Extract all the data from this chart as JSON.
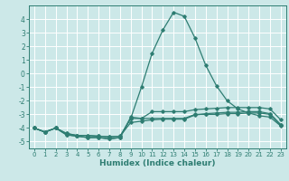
{
  "xlabel": "Humidex (Indice chaleur)",
  "x": [
    0,
    1,
    2,
    3,
    4,
    5,
    6,
    7,
    8,
    9,
    10,
    11,
    12,
    13,
    14,
    15,
    16,
    17,
    18,
    19,
    20,
    21,
    22,
    23
  ],
  "line1": [
    -4.0,
    -4.3,
    -4.0,
    -4.5,
    -4.6,
    -4.7,
    -4.7,
    -4.8,
    -4.7,
    -3.3,
    -1.0,
    1.5,
    3.2,
    4.5,
    4.2,
    2.6,
    0.6,
    -0.9,
    -2.0,
    -2.6,
    -2.9,
    -3.1,
    -3.2,
    -3.85
  ],
  "line2": [
    -4.0,
    -4.3,
    -4.0,
    -4.5,
    -4.6,
    -4.7,
    -4.7,
    -4.8,
    -4.7,
    -3.2,
    -3.3,
    -3.3,
    -3.3,
    -3.3,
    -3.3,
    -3.0,
    -3.0,
    -3.0,
    -2.95,
    -2.95,
    -2.9,
    -2.9,
    -3.0,
    -3.8
  ],
  "line3": [
    -4.0,
    -4.3,
    -4.0,
    -4.4,
    -4.55,
    -4.55,
    -4.6,
    -4.65,
    -4.6,
    -3.6,
    -3.5,
    -3.4,
    -3.35,
    -3.35,
    -3.35,
    -3.05,
    -2.95,
    -2.9,
    -2.85,
    -2.85,
    -2.8,
    -2.8,
    -2.95,
    -3.75
  ],
  "line4": [
    -4.0,
    -4.3,
    -4.0,
    -4.4,
    -4.55,
    -4.55,
    -4.6,
    -4.65,
    -4.6,
    -3.3,
    -3.3,
    -2.8,
    -2.8,
    -2.8,
    -2.8,
    -2.65,
    -2.6,
    -2.55,
    -2.5,
    -2.5,
    -2.5,
    -2.5,
    -2.6,
    -3.4
  ],
  "bg_color": "#cce8e8",
  "grid_color": "#ffffff",
  "line_color": "#2e7d72",
  "ylim": [
    -5.5,
    5.0
  ],
  "yticks": [
    -5,
    -4,
    -3,
    -2,
    -1,
    0,
    1,
    2,
    3,
    4
  ],
  "xlim": [
    -0.5,
    23.5
  ],
  "xticks": [
    0,
    1,
    2,
    3,
    4,
    5,
    6,
    7,
    8,
    9,
    10,
    11,
    12,
    13,
    14,
    15,
    16,
    17,
    18,
    19,
    20,
    21,
    22,
    23
  ]
}
